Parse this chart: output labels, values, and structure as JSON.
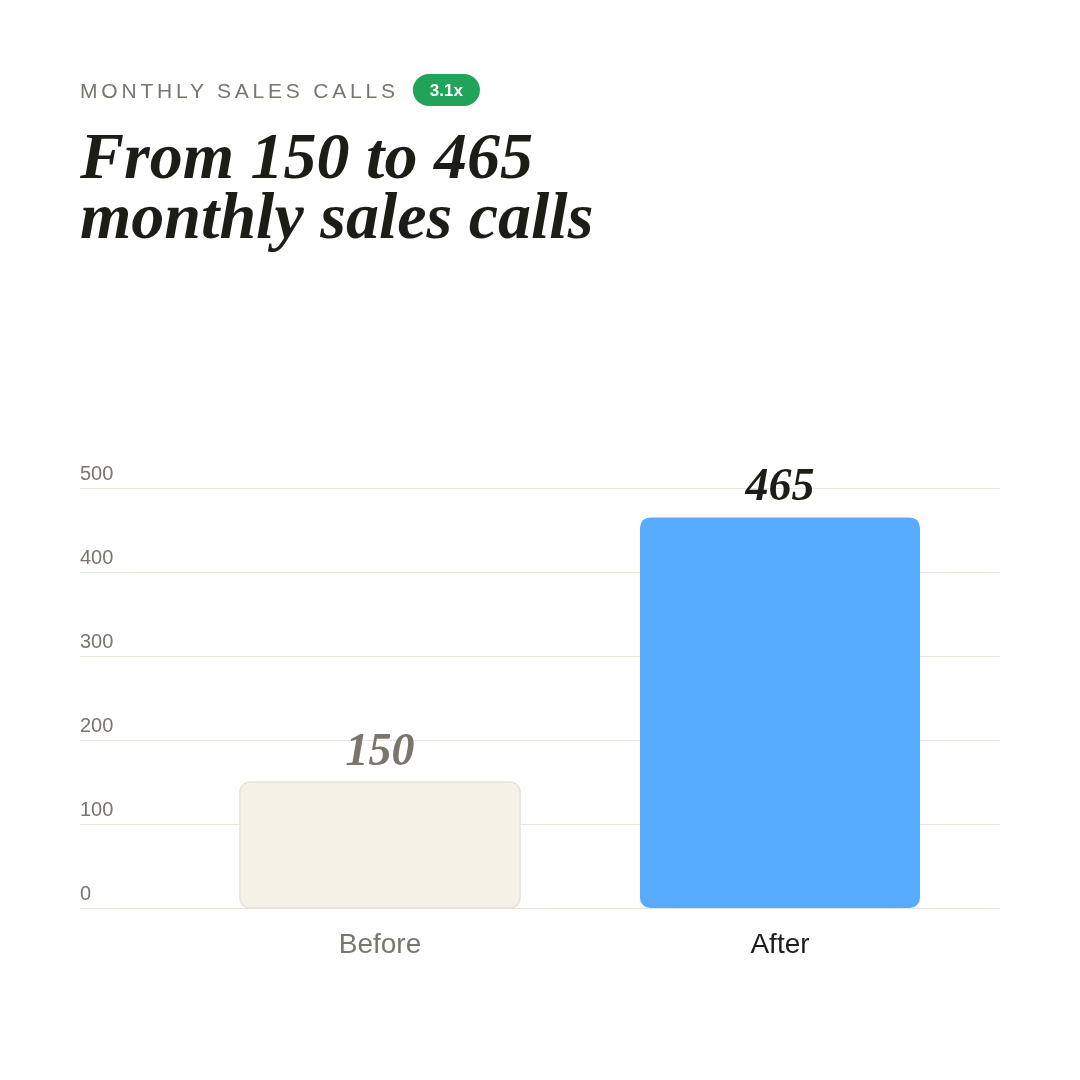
{
  "chart_data": {
    "type": "bar",
    "subtitle": "MONTHLY SALES CALLS",
    "title": "From 150 to 465 monthly sales calls",
    "annotations": [
      "3.1x"
    ],
    "categories": [
      "Before",
      "After"
    ],
    "values": [
      150,
      465
    ],
    "colors": [
      "#f4f1e6",
      "#58acff"
    ],
    "ylim": [
      0,
      500
    ],
    "yticks": [
      0,
      100,
      200,
      300,
      400,
      500
    ],
    "grid": "y",
    "data_labels": true
  }
}
